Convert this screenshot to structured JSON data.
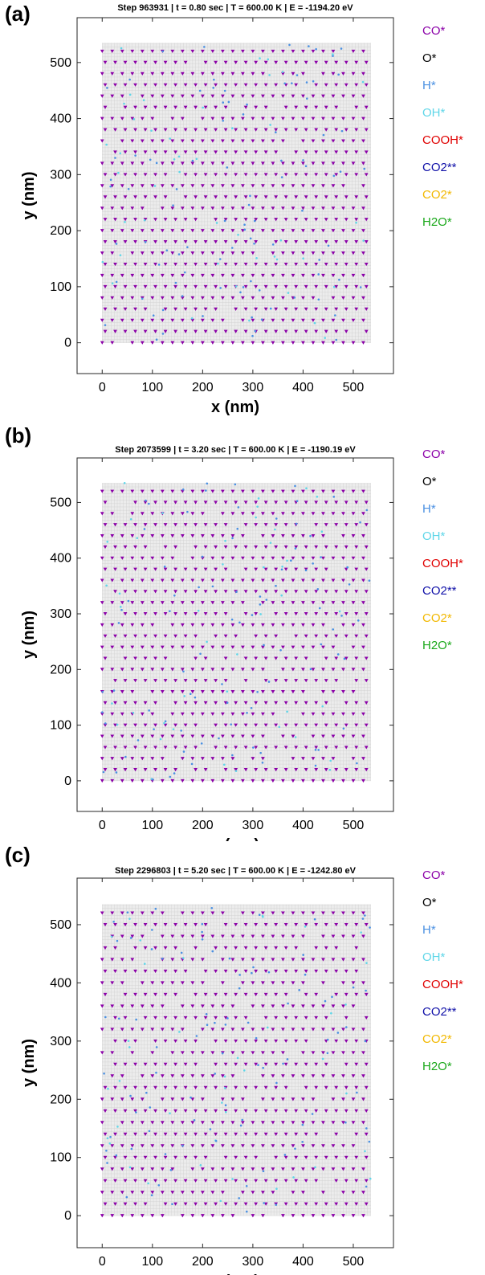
{
  "figure": {
    "colors": {
      "grid": "#cfcfcf",
      "co_marker": "#8b00a8",
      "h_marker": "#4a90e2",
      "oh_marker": "#5fd6e8",
      "axis": "#262626"
    }
  },
  "panels": [
    {
      "label": "(a)",
      "title": "Step 963931 | t = 0.80 sec | T = 600.00 K | E = -1194.20 eV",
      "xlabel": "x (nm)",
      "ylabel": "y (nm)",
      "legend": [
        {
          "text": "CO*",
          "color": "#8b00a8"
        },
        {
          "text": "O*",
          "color": "#000000"
        },
        {
          "text": "H*",
          "color": "#4a90e2"
        },
        {
          "text": "OH*",
          "color": "#5fd6e8"
        },
        {
          "text": "COOH*",
          "color": "#e00000"
        },
        {
          "text": "CO2**",
          "color": "#1010a8"
        },
        {
          "text": "CO2*",
          "color": "#f2b800"
        },
        {
          "text": "H2O*",
          "color": "#1aa81a"
        }
      ]
    },
    {
      "label": "(b)",
      "title": "Step 2073599 | t = 3.20 sec | T = 600.00 K | E = -1190.19 eV",
      "xlabel": "x (nm)",
      "ylabel": "y (nm)",
      "legend": [
        {
          "text": "CO*",
          "color": "#8b00a8"
        },
        {
          "text": "O*",
          "color": "#000000"
        },
        {
          "text": "H*",
          "color": "#4a90e2"
        },
        {
          "text": "OH*",
          "color": "#5fd6e8"
        },
        {
          "text": "COOH*",
          "color": "#e00000"
        },
        {
          "text": "CO2**",
          "color": "#1010a8"
        },
        {
          "text": "CO2*",
          "color": "#f2b800"
        },
        {
          "text": "H2O*",
          "color": "#1aa81a"
        }
      ]
    },
    {
      "label": "(c)",
      "title": "Step 2296803 | t = 5.20 sec | T = 600.00 K | E = -1242.80 eV",
      "xlabel": "x (nm)",
      "ylabel": "y (nm)",
      "legend": [
        {
          "text": "CO*",
          "color": "#8b00a8"
        },
        {
          "text": "O*",
          "color": "#000000"
        },
        {
          "text": "H*",
          "color": "#4a90e2"
        },
        {
          "text": "OH*",
          "color": "#5fd6e8"
        },
        {
          "text": "COOH*",
          "color": "#e00000"
        },
        {
          "text": "CO2**",
          "color": "#1010a8"
        },
        {
          "text": "CO2*",
          "color": "#f2b800"
        },
        {
          "text": "H2O*",
          "color": "#1aa81a"
        }
      ]
    }
  ],
  "chart_data": [
    {
      "type": "scatter",
      "title": "Step 963931 | t = 0.80 sec | T = 600.00 K | E = -1194.20 eV",
      "xlabel": "x (nm)",
      "ylabel": "y (nm)",
      "xlim": [
        -50,
        580
      ],
      "ylim": [
        -55,
        580
      ],
      "xticks": [
        0,
        100,
        200,
        300,
        400,
        500
      ],
      "yticks": [
        0,
        100,
        200,
        300,
        400,
        500
      ],
      "lattice_extent": [
        0,
        535
      ],
      "grid": true,
      "legend_position": "right",
      "series": [
        {
          "name": "CO*",
          "color": "#8b00a8",
          "marker": "triangle-down",
          "lattice_spacing": 20,
          "approx_coverage": 0.95
        },
        {
          "name": "O*",
          "color": "#000000"
        },
        {
          "name": "H*",
          "color": "#4a90e2",
          "marker": "dot"
        },
        {
          "name": "OH*",
          "color": "#5fd6e8",
          "marker": "dot"
        },
        {
          "name": "COOH*",
          "color": "#e00000"
        },
        {
          "name": "CO2**",
          "color": "#1010a8"
        },
        {
          "name": "CO2*",
          "color": "#f2b800"
        },
        {
          "name": "H2O*",
          "color": "#1aa81a",
          "marker": "dot"
        }
      ]
    },
    {
      "type": "scatter",
      "title": "Step 2073599 | t = 3.20 sec | T = 600.00 K | E = -1190.19 eV",
      "xlabel": "x (nm)",
      "ylabel": "y (nm)",
      "xlim": [
        -50,
        580
      ],
      "ylim": [
        -55,
        580
      ],
      "xticks": [
        0,
        100,
        200,
        300,
        400,
        500
      ],
      "yticks": [
        0,
        100,
        200,
        300,
        400,
        500
      ],
      "lattice_extent": [
        0,
        535
      ],
      "grid": true,
      "legend_position": "right",
      "series": [
        {
          "name": "CO*",
          "color": "#8b00a8",
          "marker": "triangle-down",
          "lattice_spacing": 20,
          "approx_coverage": 0.92
        },
        {
          "name": "O*",
          "color": "#000000"
        },
        {
          "name": "H*",
          "color": "#4a90e2",
          "marker": "dot"
        },
        {
          "name": "OH*",
          "color": "#5fd6e8",
          "marker": "dot"
        },
        {
          "name": "COOH*",
          "color": "#e00000"
        },
        {
          "name": "CO2**",
          "color": "#1010a8"
        },
        {
          "name": "CO2*",
          "color": "#f2b800"
        },
        {
          "name": "H2O*",
          "color": "#1aa81a"
        }
      ]
    },
    {
      "type": "scatter",
      "title": "Step 2296803 | t = 5.20 sec | T = 600.00 K | E = -1242.80 eV",
      "xlabel": "x (nm)",
      "ylabel": "y (nm)",
      "xlim": [
        -50,
        580
      ],
      "ylim": [
        -55,
        580
      ],
      "xticks": [
        0,
        100,
        200,
        300,
        400,
        500
      ],
      "yticks": [
        0,
        100,
        200,
        300,
        400,
        500
      ],
      "lattice_extent": [
        0,
        535
      ],
      "grid": true,
      "legend_position": "right",
      "series": [
        {
          "name": "CO*",
          "color": "#8b00a8",
          "marker": "triangle-down",
          "lattice_spacing": 20,
          "approx_coverage": 0.9
        },
        {
          "name": "O*",
          "color": "#000000"
        },
        {
          "name": "H*",
          "color": "#4a90e2",
          "marker": "dot"
        },
        {
          "name": "OH*",
          "color": "#5fd6e8",
          "marker": "dot"
        },
        {
          "name": "COOH*",
          "color": "#e00000"
        },
        {
          "name": "CO2**",
          "color": "#1010a8"
        },
        {
          "name": "CO2*",
          "color": "#f2b800"
        },
        {
          "name": "H2O*",
          "color": "#1aa81a"
        }
      ]
    }
  ]
}
